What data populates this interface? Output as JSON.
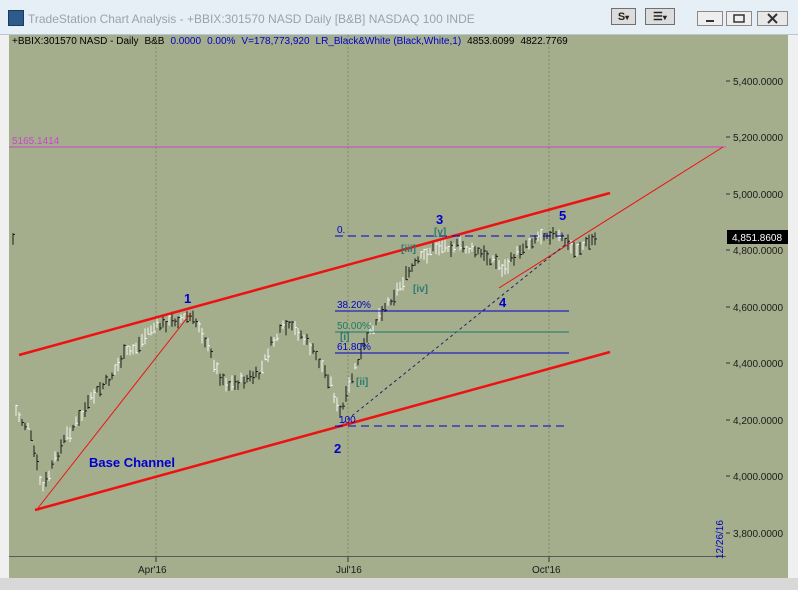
{
  "window": {
    "title": "TradeStation Chart Analysis - +BBIX:301570 NASD Daily [B&B] NASDAQ 100 INDE",
    "btn_s": "S",
    "btn_s_arrow": "▾",
    "btn_menu": "☰",
    "btn_menu_arrow": "▾"
  },
  "header": {
    "symbol": "+BBIX:301570 NASD - Daily",
    "style": "B&B",
    "change": "0.0000",
    "pct": "0.00%",
    "volume": "V=178,773,920",
    "indicator": "LR_Black&White (Black,White,1)",
    "val1": "4853.6099",
    "val2": "4822.7769"
  },
  "price_axis": {
    "labels": [
      "5,400.0000",
      "5,200.0000",
      "5,000.0000",
      "4,800.0000",
      "4,600.0000",
      "4,400.0000",
      "4,200.0000",
      "4,000.0000",
      "3,800.0000"
    ],
    "current": "4,851.8608",
    "date_label": "12/26/16"
  },
  "time_axis": {
    "labels": [
      "Apr'16",
      "Jul'16",
      "Oct'16"
    ]
  },
  "annotations": {
    "hline_label": "5165.1414",
    "base_channel": "Base Channel",
    "wave1": "1",
    "wave2": "2",
    "wave3": "3",
    "wave4": "4",
    "wave5": "5",
    "sub_i": "[i]",
    "sub_ii": "[ii]",
    "sub_iii": "[iii]",
    "sub_iv": "[iv]",
    "sub_v": "[v]",
    "fib0": "0.",
    "fib38": "38.20%",
    "fib50": "50.00%",
    "fib61": "61.80%",
    "fib100": "100"
  },
  "colors": {
    "background": "#a4ae8c",
    "channel": "#ee1111",
    "wave_labels": "#0000cc",
    "sub_labels": "#2a7a72",
    "hline": "#cc44cc",
    "fib_blue": "#0000cc",
    "fib_green": "#1a7a6a"
  }
}
